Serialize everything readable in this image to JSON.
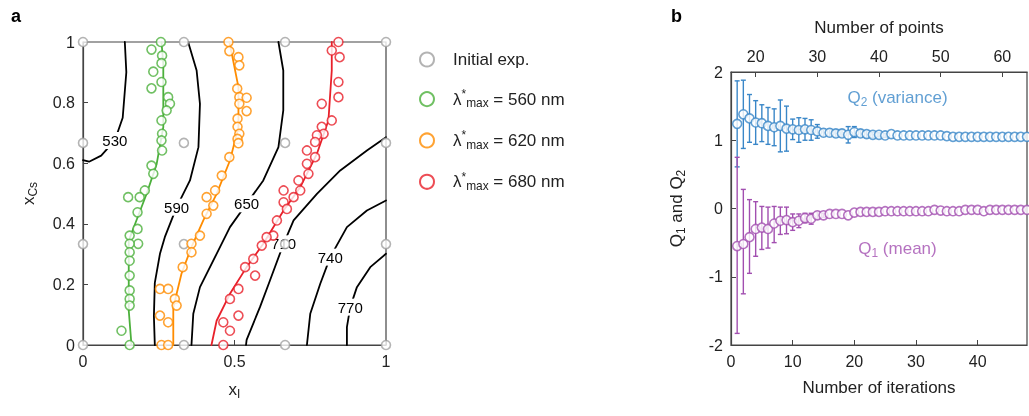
{
  "chart_data": [
    {
      "type": "scatter",
      "title": "a",
      "xlabel": "x$_{I}$",
      "ylabel": "x$_{Cs}$",
      "xlim": [
        0,
        1
      ],
      "ylim": [
        0,
        1
      ],
      "xticks": [
        0,
        0.5,
        1
      ],
      "yticks": [
        0,
        0.2,
        0.4,
        0.6,
        0.8,
        1
      ],
      "grid": false,
      "legend": "right",
      "marker": "circle",
      "line_style": "solid",
      "series": [
        {
          "type": "line",
          "marker": "none",
          "name": "530",
          "color": "#000000",
          "x": [
            0.138,
            0.143,
            0.131,
            0.105,
            0.06,
            0.02,
            0
          ],
          "values": [
            1,
            0.9,
            0.75,
            0.675,
            0.625,
            0.605,
            0.61
          ]
        },
        {
          "type": "line",
          "marker": "none",
          "name": "590",
          "color": "#000000",
          "x": [
            0.347,
            0.375,
            0.386,
            0.381,
            0.353,
            0.309,
            0.27,
            0.254,
            0.237,
            0.234,
            0.237
          ],
          "values": [
            1,
            0.906,
            0.796,
            0.653,
            0.543,
            0.455,
            0.356,
            0.301,
            0.205,
            0.095,
            0
          ]
        },
        {
          "type": "line",
          "marker": "none",
          "name": "650",
          "color": "#000000",
          "x": [
            0.645,
            0.661,
            0.661,
            0.645,
            0.595,
            0.54,
            0.485,
            0.441,
            0.386,
            0.364,
            0.358
          ],
          "values": [
            1,
            0.906,
            0.774,
            0.653,
            0.543,
            0.466,
            0.389,
            0.301,
            0.191,
            0.103,
            0
          ]
        },
        {
          "type": "line",
          "marker": "none",
          "name": "710",
          "color": "#000000",
          "x": [
            1,
            0.937,
            0.849,
            0.772,
            0.695,
            0.662,
            0.617,
            0.584,
            0.54,
            0.538
          ],
          "values": [
            0.686,
            0.642,
            0.576,
            0.499,
            0.411,
            0.334,
            0.213,
            0.125,
            0.017,
            0
          ]
        },
        {
          "type": "line",
          "marker": "none",
          "name": "740",
          "color": "#000000",
          "x": [
            1,
            0.937,
            0.871,
            0.816,
            0.783,
            0.75,
            0.739
          ],
          "values": [
            0.477,
            0.444,
            0.389,
            0.29,
            0.202,
            0.103,
            0
          ]
        },
        {
          "type": "line",
          "marker": "none",
          "name": "770",
          "color": "#000000",
          "x": [
            1,
            0.948,
            0.904,
            0.882,
            0.871,
            0.871
          ],
          "values": [
            0.301,
            0.257,
            0.191,
            0.125,
            0.059,
            0
          ]
        },
        {
          "name": "Initial exp.",
          "color": "#a0a0a0",
          "x": [
            0,
            0.333,
            0.667,
            1,
            0,
            0.333,
            0.667,
            1,
            0,
            0.333,
            0.667,
            1,
            0,
            0.333,
            0.667,
            1
          ],
          "values": [
            0,
            0,
            0,
            0,
            0.333,
            0.333,
            0.333,
            0.333,
            0.667,
            0.667,
            0.667,
            0.667,
            1,
            1,
            1,
            1
          ]
        },
        {
          "type": "line",
          "marker": "none",
          "color": "#4cb03c",
          "x": [
            0.16,
            0.151,
            0.151,
            0.21,
            0.243,
            0.265,
            0.265,
            0.259
          ],
          "values": [
            0,
            0.114,
            0.345,
            0.499,
            0.597,
            0.719,
            0.928,
            1
          ]
        },
        {
          "name": "λ$^{*}$$_{max}$ = 560 nm",
          "color": "#4cb03c",
          "x": [
            0.257,
            0.226,
            0.261,
            0.232,
            0.259,
            0.226,
            0.259,
            0.281,
            0.287,
            0.276,
            0.259,
            0.261,
            0.259,
            0.261,
            0.226,
            0.232,
            0.204,
            0.187,
            0.149,
            0.18,
            0.18,
            0.154,
            0.182,
            0.154,
            0.154,
            0.154,
            0.154,
            0.154,
            0.154,
            0.154,
            0.127,
            0.154
          ],
          "values": [
            1,
            0.975,
            0.955,
            0.902,
            0.93,
            0.847,
            0.868,
            0.818,
            0.796,
            0.774,
            0.741,
            0.697,
            0.675,
            0.642,
            0.592,
            0.565,
            0.51,
            0.488,
            0.488,
            0.438,
            0.383,
            0.361,
            0.334,
            0.334,
            0.306,
            0.278,
            0.229,
            0.18,
            0.152,
            0.13,
            0.047,
            0
          ]
        },
        {
          "type": "line",
          "marker": "none",
          "color": "#ff8c00",
          "x": [
            0.298,
            0.298,
            0.325,
            0.358,
            0.397,
            0.441,
            0.485,
            0.513,
            0.513,
            0.491,
            0.483
          ],
          "values": [
            0,
            0.124,
            0.235,
            0.323,
            0.411,
            0.499,
            0.609,
            0.719,
            0.851,
            0.962,
            1
          ]
        },
        {
          "name": "λ$^{*}$$_{max}$ = 620 nm",
          "color": "#ff8c00",
          "x": [
            0.48,
            0.483,
            0.513,
            0.516,
            0.509,
            0.516,
            0.54,
            0.516,
            0.54,
            0.51,
            0.51,
            0.516,
            0.51,
            0.513,
            0.483,
            0.458,
            0.436,
            0.408,
            0.43,
            0.408,
            0.386,
            0.358,
            0.358,
            0.329,
            0.254,
            0.281,
            0.303,
            0.309,
            0.254,
            0.281,
            0.259,
            0.281
          ],
          "values": [
            1,
            0.97,
            0.95,
            0.923,
            0.846,
            0.818,
            0.816,
            0.796,
            0.772,
            0.747,
            0.72,
            0.697,
            0.68,
            0.666,
            0.62,
            0.559,
            0.51,
            0.488,
            0.46,
            0.433,
            0.361,
            0.334,
            0.306,
            0.257,
            0.185,
            0.185,
            0.152,
            0.13,
            0.097,
            0.075,
            0,
            0
          ]
        },
        {
          "type": "line",
          "marker": "none",
          "color": "#e8202a",
          "x": [
            0.424,
            0.441,
            0.485,
            0.54,
            0.595,
            0.662,
            0.717,
            0.772,
            0.81,
            0.821,
            0.821
          ],
          "values": [
            0,
            0.08,
            0.169,
            0.257,
            0.334,
            0.444,
            0.521,
            0.631,
            0.741,
            0.906,
            1
          ]
        },
        {
          "name": "λ$^{*}$$_{max}$ = 680 nm",
          "color": "#e8202a",
          "x": [
            0.843,
            0.821,
            0.847,
            0.843,
            0.843,
            0.788,
            0.821,
            0.788,
            0.794,
            0.772,
            0.766,
            0.739,
            0.766,
            0.739,
            0.744,
            0.711,
            0.717,
            0.662,
            0.695,
            0.662,
            0.673,
            0.64,
            0.628,
            0.606,
            0.59,
            0.562,
            0.568,
            0.535,
            0.513,
            0.485,
            0.513,
            0.463,
            0.485,
            0.463
          ],
          "values": [
            1,
            0.972,
            0.95,
            0.868,
            0.818,
            0.796,
            0.741,
            0.72,
            0.697,
            0.692,
            0.67,
            0.642,
            0.62,
            0.598,
            0.565,
            0.543,
            0.51,
            0.51,
            0.488,
            0.471,
            0.449,
            0.411,
            0.361,
            0.356,
            0.328,
            0.284,
            0.229,
            0.257,
            0.185,
            0.152,
            0.097,
            0.075,
            0.047,
            0
          ]
        }
      ]
    },
    {
      "type": "scatter",
      "title": "b",
      "xlabel": "Number of iterations",
      "ylabel": "Q$_{1}$ and Q$_{2}$",
      "x2label": "Number of points",
      "xlim": [
        0,
        48
      ],
      "xticks": [
        0,
        10,
        20,
        30,
        40
      ],
      "x2lim": [
        16,
        64
      ],
      "x2ticks": [
        20,
        30,
        40,
        50,
        60
      ],
      "ylim": [
        -2,
        2
      ],
      "yticks": [
        -2,
        -1,
        0,
        1,
        2
      ],
      "grid": false,
      "legend": false,
      "marker": "circle",
      "x": [
        1,
        2,
        3,
        4,
        5,
        6,
        7,
        8,
        9,
        10,
        11,
        12,
        13,
        14,
        15,
        16,
        17,
        18,
        19,
        20,
        21,
        22,
        23,
        24,
        25,
        26,
        27,
        28,
        29,
        30,
        31,
        32,
        33,
        34,
        35,
        36,
        37,
        38,
        39,
        40,
        41,
        42,
        43,
        44,
        45,
        46,
        47,
        48
      ],
      "series": [
        {
          "name": "Q$_{2}$ (variance)",
          "color": "#3a87c8",
          "values": [
            1.24,
            1.38,
            1.32,
            1.26,
            1.25,
            1.21,
            1.19,
            1.21,
            1.17,
            1.16,
            1.15,
            1.16,
            1.15,
            1.13,
            1.11,
            1.11,
            1.1,
            1.1,
            1.08,
            1.12,
            1.1,
            1.09,
            1.08,
            1.08,
            1.07,
            1.09,
            1.07,
            1.07,
            1.07,
            1.07,
            1.07,
            1.07,
            1.07,
            1.07,
            1.06,
            1.05,
            1.05,
            1.05,
            1.05,
            1.05,
            1.05,
            1.05,
            1.05,
            1.05,
            1.05,
            1.05,
            1.05,
            1.05
          ],
          "errors": [
            0.63,
            0.5,
            0.35,
            0.32,
            0.27,
            0.27,
            0.27,
            0.38,
            0.33,
            0.15,
            0.18,
            0.16,
            0.15,
            0.1,
            0.05,
            0.05,
            0.05,
            0.05,
            0.12,
            0.08,
            0.05,
            0.05,
            0.04,
            0.03,
            0.03,
            null,
            null,
            null,
            null,
            null,
            null,
            null,
            null,
            null,
            null,
            null,
            null,
            null,
            null,
            null,
            null,
            null,
            null,
            null,
            null,
            null,
            null,
            null
          ]
        },
        {
          "name": "Q$_{1}$ (mean)",
          "color": "#a24fb0",
          "values": [
            -0.55,
            -0.52,
            -0.42,
            -0.3,
            -0.28,
            -0.3,
            -0.22,
            -0.18,
            -0.17,
            -0.2,
            -0.18,
            -0.14,
            -0.15,
            -0.1,
            -0.1,
            -0.08,
            -0.08,
            -0.08,
            -0.1,
            -0.06,
            -0.05,
            -0.05,
            -0.05,
            -0.05,
            -0.04,
            -0.04,
            -0.04,
            -0.04,
            -0.04,
            -0.04,
            -0.04,
            -0.04,
            -0.02,
            -0.03,
            -0.04,
            -0.04,
            -0.04,
            -0.02,
            -0.02,
            -0.02,
            -0.04,
            -0.02,
            -0.02,
            -0.02,
            -0.02,
            -0.02,
            -0.02,
            -0.02
          ],
          "errors": [
            [
              -1.83,
              0.75
            ],
            [
              -1.25,
              0.28
            ],
            [
              -0.95,
              0.13
            ],
            [
              -0.7,
              0.1
            ],
            [
              -0.6,
              0.03
            ],
            [
              -0.58,
              0.02
            ],
            [
              -0.5,
              0.03
            ],
            [
              -0.38,
              0.02
            ],
            [
              -0.37,
              0.02
            ],
            0.12,
            0.1,
            0.07,
            0.08,
            0.05,
            0.03,
            null,
            null,
            null,
            null,
            null,
            null,
            null,
            null,
            null,
            null,
            null,
            null,
            null,
            null,
            null,
            null,
            null,
            null,
            null,
            null,
            null,
            null,
            null,
            null,
            null,
            null,
            null,
            null,
            null,
            null,
            null,
            null,
            null
          ]
        }
      ]
    }
  ]
}
